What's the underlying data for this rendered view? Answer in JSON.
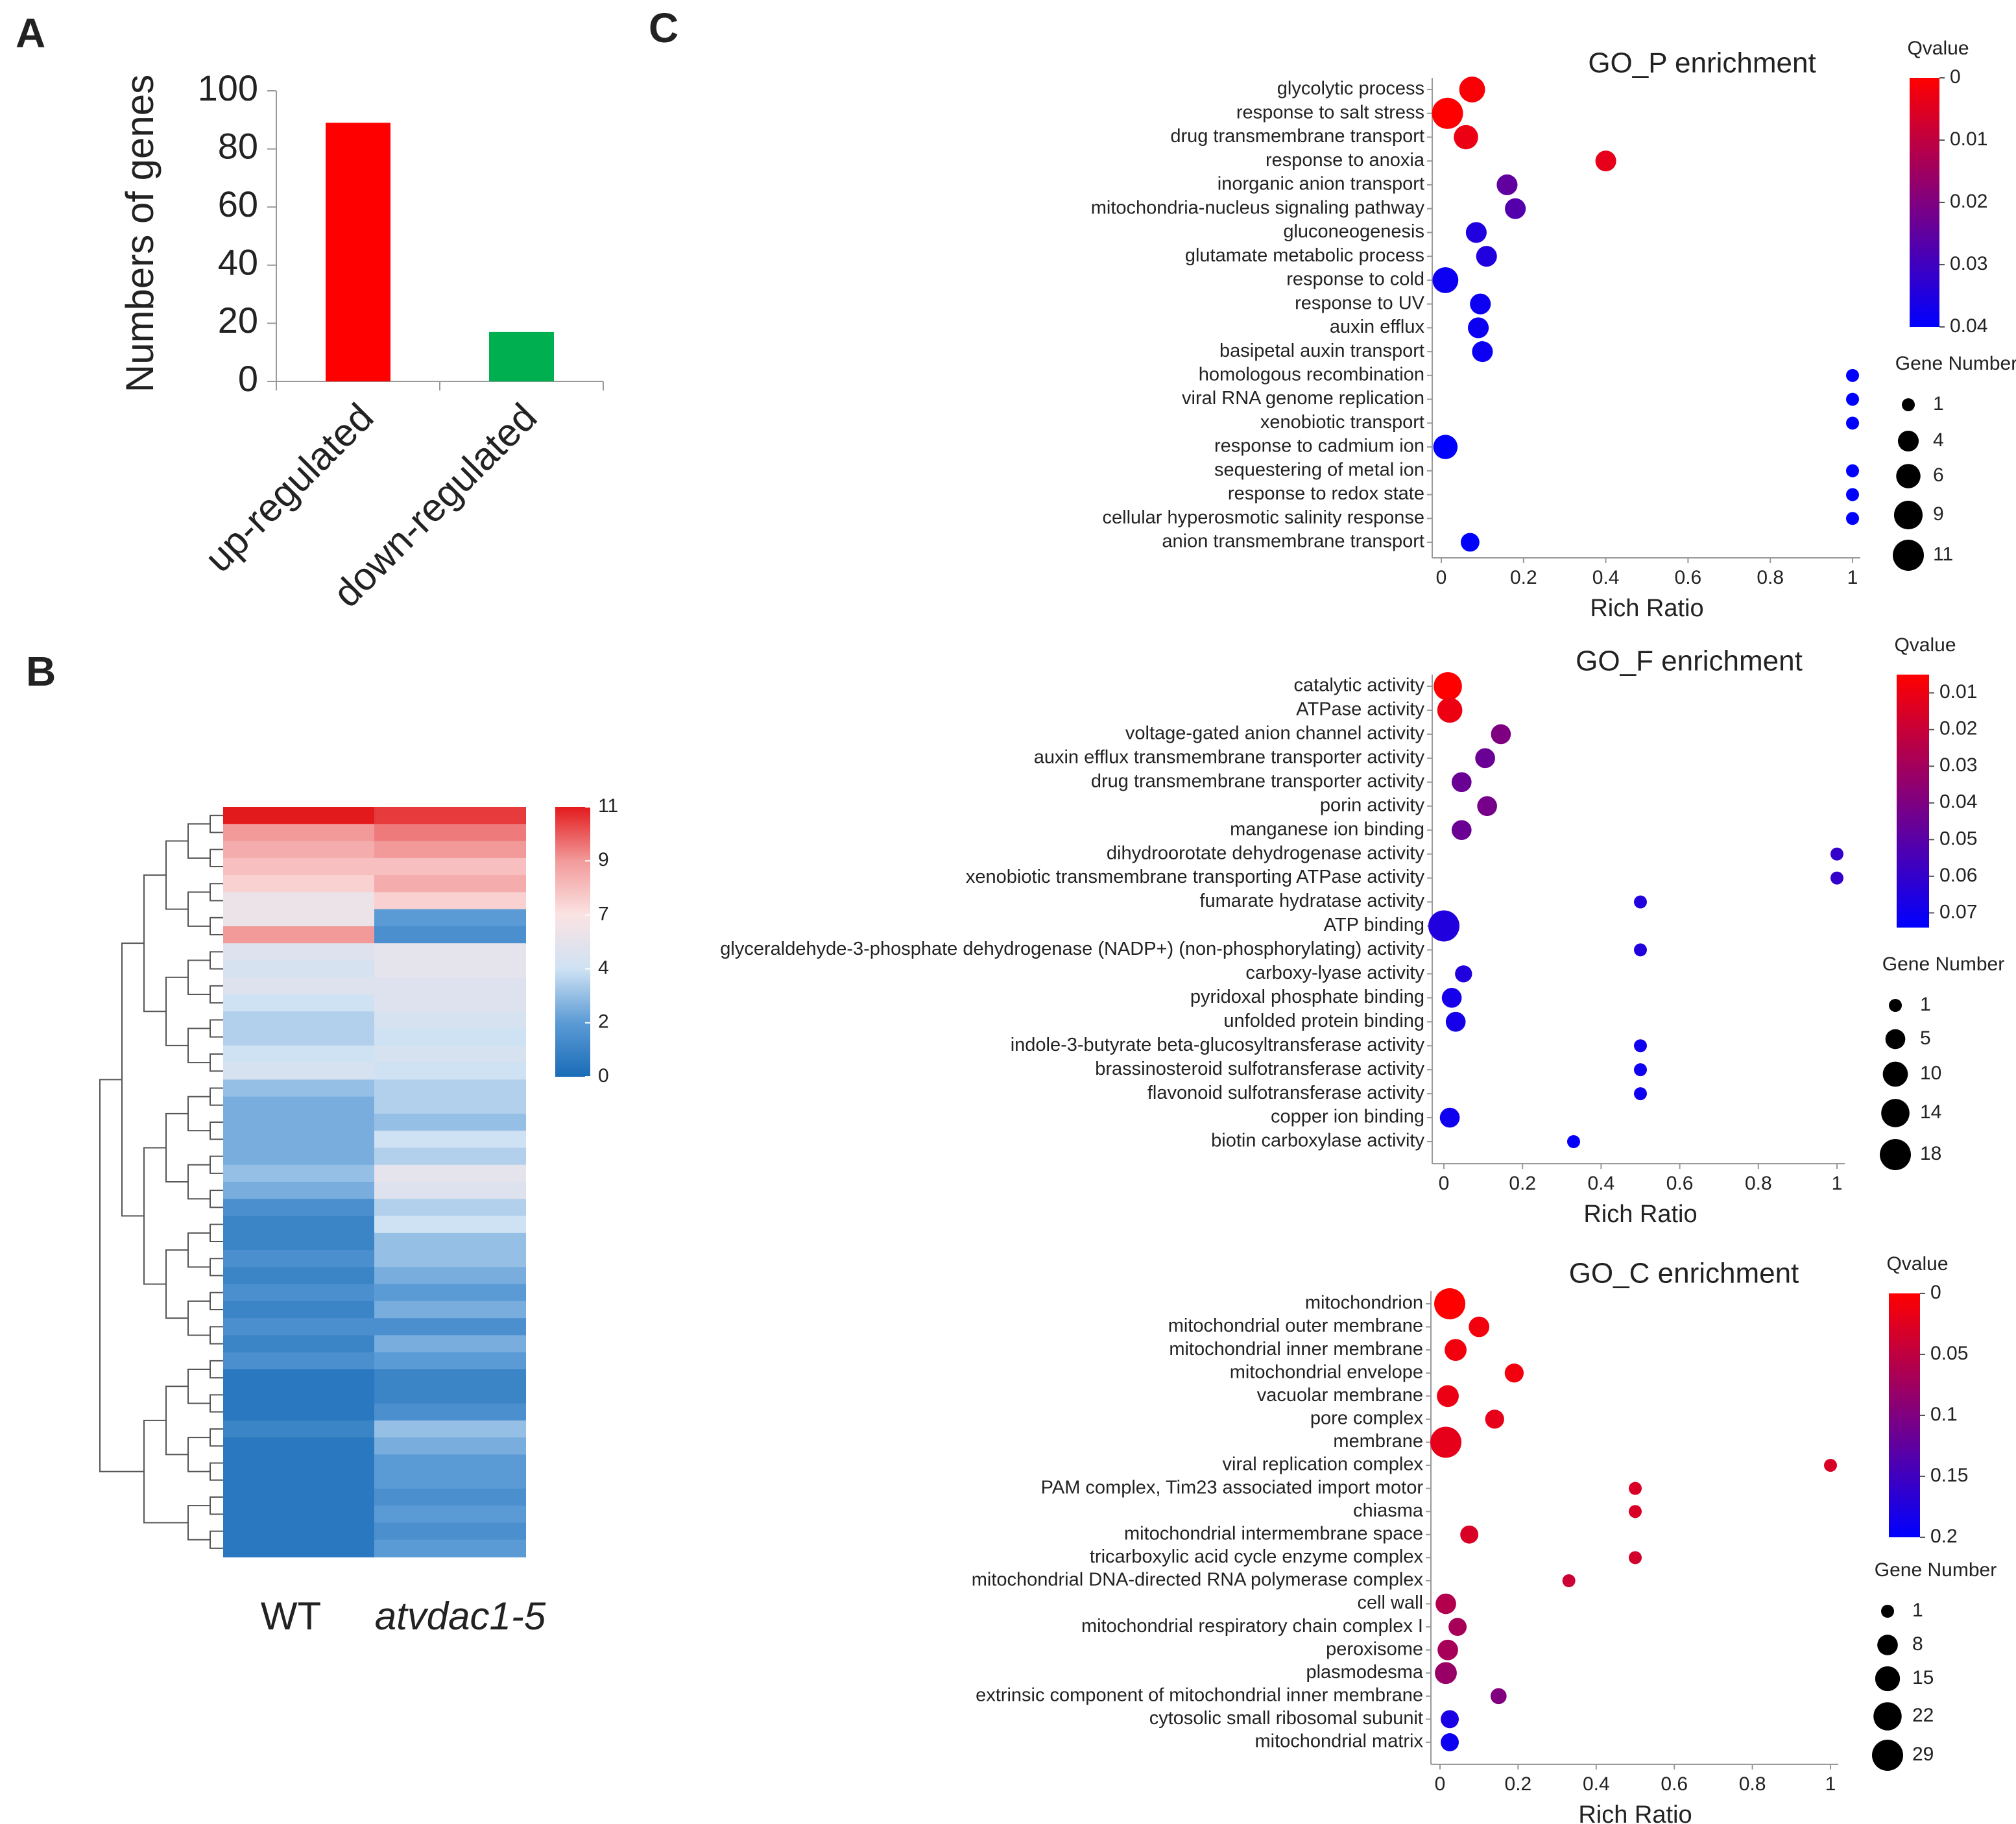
{
  "panel_labels": [
    "A",
    "B",
    "C"
  ],
  "chart_data": [
    {
      "type": "bar",
      "ylabel": "Numbers of genes",
      "categories": [
        "up-regulated",
        "down-regulated"
      ],
      "values": [
        89,
        17
      ],
      "colors": [
        "#ff0000",
        "#00b050"
      ],
      "ylim": [
        0,
        100
      ],
      "yticks": [
        0,
        20,
        40,
        60,
        80,
        100
      ]
    },
    {
      "type": "heatmap",
      "columns": [
        "WT",
        "atvdac1-5"
      ],
      "rows": [
        [
          11,
          10.5
        ],
        [
          9,
          9.5
        ],
        [
          8.5,
          9
        ],
        [
          8,
          8
        ],
        [
          7.5,
          8.5
        ],
        [
          6,
          7.5
        ],
        [
          6,
          2
        ],
        [
          9,
          1.5
        ],
        [
          5,
          5.5
        ],
        [
          4.5,
          5.5
        ],
        [
          5,
          5
        ],
        [
          4,
          5
        ],
        [
          3.5,
          4.5
        ],
        [
          3.5,
          4
        ],
        [
          4,
          4.5
        ],
        [
          4.5,
          4
        ],
        [
          3,
          3.5
        ],
        [
          2.5,
          3.5
        ],
        [
          2.5,
          3
        ],
        [
          2.5,
          4
        ],
        [
          2.5,
          3.5
        ],
        [
          3,
          5.5
        ],
        [
          2.5,
          5
        ],
        [
          1.5,
          3.5
        ],
        [
          1,
          4
        ],
        [
          1,
          3
        ],
        [
          1.5,
          3
        ],
        [
          1,
          2.5
        ],
        [
          1.5,
          2
        ],
        [
          1,
          2.5
        ],
        [
          1.5,
          1.5
        ],
        [
          1,
          2.5
        ],
        [
          1.5,
          2
        ],
        [
          0.5,
          1
        ],
        [
          0.5,
          1
        ],
        [
          0.5,
          1.5
        ],
        [
          1,
          3
        ],
        [
          0.5,
          2.5
        ],
        [
          0.5,
          2
        ],
        [
          0.5,
          2
        ],
        [
          0.5,
          1.5
        ],
        [
          0.5,
          2
        ],
        [
          0.5,
          1.5
        ],
        [
          0.5,
          2
        ]
      ],
      "colorbar": {
        "lim": [
          0,
          11
        ],
        "ticks": [
          0,
          2,
          4,
          7,
          9,
          11
        ],
        "colors": [
          "#1a6cb7",
          "#5b9bd5",
          "#cfe2f3",
          "#fbe3e3",
          "#f29a9a",
          "#e31a1c"
        ]
      }
    },
    {
      "type": "bubble",
      "title": "GO_P enrichment",
      "xlabel": "Rich Ratio",
      "categories": [
        "glycolytic process",
        "response to salt stress",
        "drug transmembrane transport",
        "response to anoxia",
        "inorganic anion transport",
        "mitochondria-nucleus signaling pathway",
        "gluconeogenesis",
        "glutamate metabolic process",
        "response to cold",
        "response to UV",
        "auxin efflux",
        "basipetal auxin transport",
        "homologous recombination",
        "viral RNA genome replication",
        "xenobiotic transport",
        "response to cadmium ion",
        "sequestering of metal ion",
        "response to redox state",
        "cellular hyperosmotic salinity response",
        "anion transmembrane transport"
      ],
      "x": [
        0.075,
        0.015,
        0.06,
        0.4,
        0.16,
        0.18,
        0.085,
        0.11,
        0.01,
        0.095,
        0.09,
        0.1,
        1,
        1,
        1,
        0.01,
        1,
        1,
        1,
        0.07
      ],
      "qvalue": [
        0.001,
        0,
        0.003,
        0.004,
        0.025,
        0.027,
        0.035,
        0.035,
        0.038,
        0.038,
        0.038,
        0.038,
        0.04,
        0.04,
        0.04,
        0.04,
        0.04,
        0.04,
        0.04,
        0.04
      ],
      "gene_number": [
        7,
        11,
        6,
        4,
        4,
        4,
        4,
        4,
        7,
        4,
        4,
        4,
        1,
        1,
        1,
        6,
        1,
        1,
        1,
        3
      ],
      "xlim": [
        0,
        1
      ],
      "xticks": [
        0,
        0.2,
        0.4,
        0.6,
        0.8,
        1
      ],
      "colorbar": {
        "title": "Qvalue",
        "lim": [
          0,
          0.04
        ],
        "ticks": [
          0,
          0.01,
          0.02,
          0.03,
          0.04
        ],
        "colors": [
          "#ff0000",
          "#0000ff"
        ]
      },
      "size_legend": {
        "title": "Gene Number",
        "values": [
          1,
          4,
          6,
          9,
          11
        ]
      }
    },
    {
      "type": "bubble",
      "title": "GO_F enrichment",
      "xlabel": "Rich Ratio",
      "categories": [
        "catalytic activity",
        "ATPase activity",
        "voltage-gated anion channel activity",
        "auxin efflux transmembrane transporter activity",
        "drug transmembrane transporter activity",
        "porin activity",
        "manganese ion binding",
        "dihydroorotate dehydrogenase activity",
        "xenobiotic transmembrane transporting ATPase activity",
        "fumarate hydratase activity",
        "ATP binding",
        "glyceraldehyde-3-phosphate dehydrogenase (NADP+) (non-phosphorylating) activity",
        "carboxy-lyase activity",
        "pyridoxal phosphate binding",
        "unfolded protein binding",
        "indole-3-butyrate beta-glucosyltransferase activity",
        "brassinosteroid sulfotransferase activity",
        "flavonoid sulfotransferase activity",
        "copper ion binding",
        "biotin carboxylase activity"
      ],
      "x": [
        0.01,
        0.015,
        0.145,
        0.105,
        0.045,
        0.11,
        0.045,
        1,
        1,
        0.5,
        0,
        0.5,
        0.05,
        0.02,
        0.03,
        0.5,
        0.5,
        0.5,
        0.015,
        0.33
      ],
      "qvalue": [
        0.005,
        0.01,
        0.04,
        0.045,
        0.045,
        0.042,
        0.045,
        0.06,
        0.06,
        0.065,
        0.065,
        0.065,
        0.065,
        0.068,
        0.068,
        0.07,
        0.07,
        0.07,
        0.07,
        0.072
      ],
      "gene_number": [
        14,
        10,
        5,
        5,
        5,
        5,
        5,
        1,
        1,
        1,
        18,
        1,
        3,
        5,
        5,
        1,
        1,
        1,
        5,
        1
      ],
      "xlim": [
        0,
        1
      ],
      "xticks": [
        0,
        0.2,
        0.4,
        0.6,
        0.8,
        1
      ],
      "colorbar": {
        "title": "Qvalue",
        "lim": [
          0.005,
          0.074
        ],
        "ticks": [
          0.01,
          0.02,
          0.03,
          0.04,
          0.05,
          0.06,
          0.07
        ],
        "colors": [
          "#ff0000",
          "#0000ff"
        ]
      },
      "size_legend": {
        "title": "Gene Number",
        "values": [
          1,
          5,
          10,
          14,
          18
        ]
      }
    },
    {
      "type": "bubble",
      "title": "GO_C enrichment",
      "xlabel": "Rich Ratio",
      "categories": [
        "mitochondrion",
        "mitochondrial outer membrane",
        "mitochondrial inner membrane",
        "mitochondrial envelope",
        "vacuolar membrane",
        "pore complex",
        "membrane",
        "viral replication complex",
        "PAM complex, Tim23 associated import motor",
        "chiasma",
        "mitochondrial intermembrane space",
        "tricarboxylic acid cycle enzyme complex",
        "mitochondrial DNA-directed RNA polymerase complex",
        "cell wall",
        "mitochondrial respiratory chain complex I",
        "peroxisome",
        "plasmodesma",
        "extrinsic component of mitochondrial inner membrane",
        "cytosolic small ribosomal subunit",
        "mitochondrial matrix"
      ],
      "x": [
        0.025,
        0.1,
        0.04,
        0.19,
        0.02,
        0.14,
        0.015,
        1,
        0.5,
        0.5,
        0.075,
        0.5,
        0.33,
        0.015,
        0.045,
        0.02,
        0.015,
        0.15,
        0.025,
        0.025
      ],
      "qvalue": [
        0,
        0.01,
        0.01,
        0.01,
        0.015,
        0.02,
        0.02,
        0.03,
        0.03,
        0.03,
        0.03,
        0.035,
        0.04,
        0.06,
        0.07,
        0.07,
        0.08,
        0.1,
        0.18,
        0.19
      ],
      "gene_number": [
        29,
        8,
        10,
        6,
        10,
        6,
        29,
        1,
        1,
        1,
        5,
        1,
        1,
        8,
        5,
        8,
        10,
        3,
        5,
        5
      ],
      "xlim": [
        0,
        1
      ],
      "xticks": [
        0,
        0.2,
        0.4,
        0.6,
        0.8,
        1
      ],
      "colorbar": {
        "title": "Qvalue",
        "lim": [
          0,
          0.2
        ],
        "ticks": [
          0,
          0.05,
          0.1,
          0.15,
          0.2
        ],
        "colors": [
          "#ff0000",
          "#0000ff"
        ]
      },
      "size_legend": {
        "title": "Gene Number",
        "values": [
          1,
          8,
          15,
          22,
          29
        ]
      }
    }
  ]
}
